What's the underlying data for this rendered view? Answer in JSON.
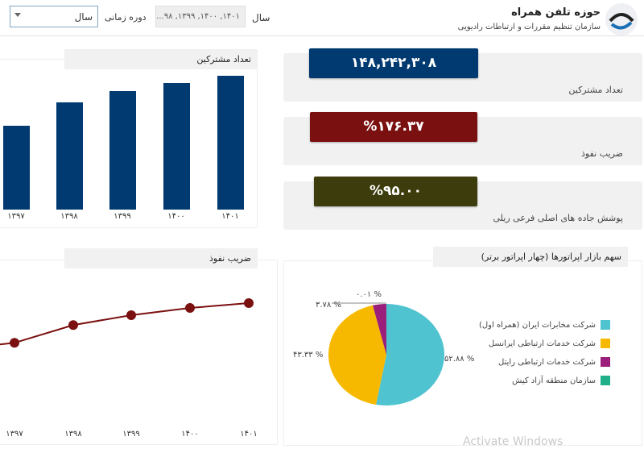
{
  "header": {
    "title": "حوزه تلفن همراه",
    "subtitle": "سازمان تنظیم مقررات و ارتباطات رادیویی",
    "year_label": "سال",
    "year_filter_value": "۱۴۰۱, ۱۴۰۰, ۱۳۹۹, ۹۸...",
    "period_label": "دوره زمانی",
    "period_value": "سال"
  },
  "kpis": [
    {
      "value": "۱۴۸,۲۴۲,۳۰۸",
      "label": "تعداد مشترکین",
      "color": "#003a70"
    },
    {
      "value": "%۱۷۶.۳۷",
      "label": "ضریب نفوذ",
      "color": "#7b1010"
    },
    {
      "value": "%۹۵.۰۰",
      "label": "پوشش جاده های اصلی فرعی ریلی",
      "color": "#3c3c0c"
    }
  ],
  "chart_data": [
    {
      "type": "bar",
      "title": "تعداد مشترکین",
      "categories": [
        "۱۳۹۷",
        "۱۳۹۸",
        "۱۳۹۹",
        "۱۴۰۰",
        "۱۴۰۱"
      ],
      "values": [
        92.9,
        118.8,
        131.3,
        140.2,
        148.2
      ],
      "unit_note": "millions (estimated)",
      "color": "#003a70"
    },
    {
      "type": "line",
      "title": "ضریب نفوذ",
      "categories": [
        "۱۳۹۷",
        "۱۳۹۸",
        "۱۳۹۹",
        "۱۴۰۰",
        "۱۴۰۱"
      ],
      "values": [
        116,
        143,
        158,
        169,
        176.37
      ],
      "color": "#7b1010"
    },
    {
      "type": "pie",
      "title": "سهم بازار اپراتورها (چهار اپراتور برتر)",
      "legend": "right",
      "slices": [
        {
          "name": "شرکت مخابرات ایران (همراه اول)",
          "value": 52.88,
          "label": "۵۲.۸۸ %",
          "color": "#4fc3cf"
        },
        {
          "name": "شرکت خدمات ارتباطی ایرانسل",
          "value": 43.33,
          "label": "۴۳.۳۳ %",
          "color": "#f7b900"
        },
        {
          "name": "شرکت خدمات ارتباطی رایتل",
          "value": 3.78,
          "label": "۳.۷۸ %",
          "color": "#9b1f7a"
        },
        {
          "name": "سازمان منطقه آزاد کیش",
          "value": 0.01,
          "label": "۰.۰۱ %",
          "color": "#1fb08a"
        }
      ]
    }
  ],
  "watermark": "Activate Windows"
}
